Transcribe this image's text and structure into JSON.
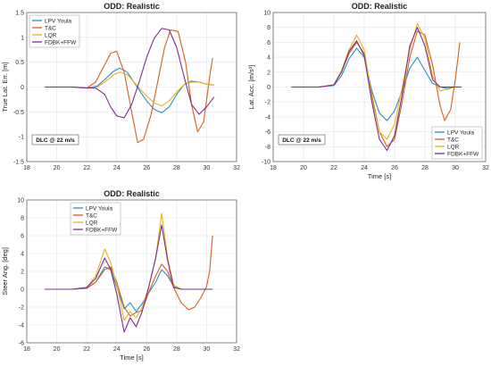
{
  "chart_data": [
    {
      "type": "line",
      "title": "ODD: Realistic",
      "xlabel": "",
      "ylabel": "True Lat. Err. [m]",
      "xlim": [
        18,
        32
      ],
      "ylim": [
        -1.5,
        1.5
      ],
      "xticks": [
        "18",
        "20",
        "22",
        "24",
        "26",
        "28",
        "30",
        "32"
      ],
      "yticks": [
        "-1.5",
        "-1",
        "-0.5",
        "0",
        "0.5",
        "1",
        "1.5"
      ],
      "grid": true,
      "legend": "top-left",
      "annotation": "DLC @ 22 m/s",
      "series": [
        {
          "name": "LPV Youla",
          "color": "#2a8fc0",
          "x": [
            19.2,
            20,
            21,
            22,
            22.7,
            23.3,
            23.8,
            24.2,
            24.7,
            25.1,
            25.5,
            26,
            26.5,
            27,
            27.5,
            28,
            28.5,
            29,
            29.5,
            30,
            30.5
          ],
          "y": [
            0,
            0,
            0,
            -0.02,
            0.02,
            0.18,
            0.32,
            0.38,
            0.3,
            0.12,
            -0.06,
            -0.28,
            -0.45,
            -0.52,
            -0.4,
            -0.15,
            0.05,
            0.12,
            0.1,
            0.06,
            0.04
          ]
        },
        {
          "name": "T&C",
          "color": "#d35f1e",
          "x": [
            19.2,
            20,
            21,
            22,
            22.6,
            23.2,
            23.6,
            24,
            24.5,
            25,
            25.4,
            25.8,
            26.3,
            26.8,
            27.2,
            27.6,
            28.1,
            28.6,
            29,
            29.4,
            29.8,
            30.2,
            30.4
          ],
          "y": [
            0,
            0,
            0,
            -0.02,
            0.1,
            0.45,
            0.68,
            0.72,
            0.3,
            -0.5,
            -1.12,
            -1.05,
            -0.55,
            0.2,
            0.8,
            1.15,
            1.12,
            0.5,
            -0.35,
            -0.9,
            -0.7,
            0.2,
            0.58
          ]
        },
        {
          "name": "LQR",
          "color": "#e6b21e",
          "x": [
            19.2,
            20,
            21,
            22,
            22.7,
            23.3,
            23.8,
            24.2,
            24.7,
            25.1,
            25.5,
            26,
            26.5,
            27,
            27.5,
            28,
            28.5,
            29,
            29.5,
            30,
            30.5
          ],
          "y": [
            0,
            0,
            0,
            -0.02,
            0,
            0.12,
            0.25,
            0.3,
            0.25,
            0.12,
            -0.02,
            -0.18,
            -0.32,
            -0.38,
            -0.28,
            -0.1,
            0.05,
            0.1,
            0.1,
            0.06,
            0.04
          ]
        },
        {
          "name": "FDBK+FFW",
          "color": "#7b2e8e",
          "x": [
            19.2,
            20,
            21,
            22,
            22.6,
            23.2,
            23.6,
            24,
            24.5,
            25,
            25.5,
            26,
            26.5,
            27,
            27.5,
            28,
            28.5,
            29,
            29.5,
            30,
            30.5
          ],
          "y": [
            0,
            0,
            0,
            -0.02,
            -0.02,
            -0.15,
            -0.4,
            -0.58,
            -0.62,
            -0.35,
            0.1,
            0.6,
            0.98,
            1.18,
            1.15,
            0.8,
            0.2,
            -0.35,
            -0.55,
            -0.4,
            -0.2
          ]
        }
      ]
    },
    {
      "type": "line",
      "title": "ODD: Realistic",
      "xlabel": "Time [s]",
      "ylabel": "Lat. Acc. [m/s²]",
      "xlim": [
        18,
        32
      ],
      "ylim": [
        -10,
        10
      ],
      "xticks": [
        "18",
        "20",
        "22",
        "24",
        "26",
        "28",
        "30",
        "32"
      ],
      "yticks": [
        "-10",
        "-8",
        "-6",
        "-4",
        "-2",
        "0",
        "2",
        "4",
        "6",
        "8",
        "10"
      ],
      "grid": true,
      "legend": "bottom-right",
      "annotation": "DLC @ 22 m/s",
      "series": [
        {
          "name": "LPV Youla",
          "color": "#2a8fc0",
          "x": [
            19.2,
            20,
            21,
            22,
            22.5,
            23,
            23.5,
            24,
            24.5,
            25,
            25.5,
            26,
            26.5,
            27,
            27.5,
            28,
            28.5,
            29,
            29.5,
            30,
            30.4
          ],
          "y": [
            0,
            0,
            0,
            0.2,
            1.5,
            3.8,
            5.2,
            4,
            -0.5,
            -3.5,
            -4.5,
            -3.2,
            -0.5,
            2.5,
            4,
            2.2,
            0.5,
            0,
            -0.2,
            0,
            0
          ]
        },
        {
          "name": "T&C",
          "color": "#d35f1e",
          "x": [
            19.2,
            20,
            21,
            22,
            22.5,
            23,
            23.5,
            24,
            24.5,
            25,
            25.5,
            26,
            26.5,
            27,
            27.5,
            28,
            28.5,
            29,
            29.3,
            29.7,
            30,
            30.3
          ],
          "y": [
            0,
            0,
            0,
            0.3,
            2,
            4.5,
            6,
            4.5,
            -1,
            -6,
            -8,
            -7,
            -2,
            4,
            7.5,
            7,
            3,
            -2.5,
            -4.5,
            -3,
            1,
            6
          ]
        },
        {
          "name": "LQR",
          "color": "#e6b21e",
          "x": [
            19.2,
            20,
            21,
            22,
            22.5,
            23,
            23.5,
            24,
            24.5,
            25,
            25.5,
            26,
            26.5,
            27,
            27.5,
            28,
            28.5,
            29,
            29.5,
            30,
            30.4
          ],
          "y": [
            0,
            0,
            0,
            0.3,
            2.2,
            5,
            7,
            5,
            -1.5,
            -6,
            -7,
            -5,
            0,
            5,
            8.5,
            6.5,
            1.5,
            -0.5,
            -0.3,
            0,
            0
          ]
        },
        {
          "name": "FDBK+FFW",
          "color": "#7b2e8e",
          "x": [
            19.2,
            20,
            21,
            22,
            22.5,
            23,
            23.5,
            24,
            24.5,
            25,
            25.5,
            26,
            26.5,
            27,
            27.5,
            28,
            28.5,
            29,
            29.5,
            30,
            30.4
          ],
          "y": [
            0,
            0,
            0,
            0.3,
            2,
            4.8,
            6.2,
            4.2,
            -2,
            -7,
            -8.5,
            -6.5,
            -1,
            5.5,
            8,
            5.5,
            1,
            0,
            0,
            0,
            0
          ]
        }
      ]
    },
    {
      "type": "line",
      "title": "ODD: Realistic",
      "xlabel": "Time [s]",
      "ylabel": "Steer Ang. [deg]",
      "xlim": [
        18,
        32
      ],
      "ylim": [
        -6,
        10
      ],
      "xticks": [
        "18",
        "20",
        "22",
        "24",
        "26",
        "28",
        "30",
        "32"
      ],
      "yticks": [
        "-6",
        "-4",
        "-2",
        "0",
        "2",
        "4",
        "6",
        "8",
        "10"
      ],
      "grid": true,
      "legend": "top-right",
      "series": [
        {
          "name": "LPV Youla",
          "color": "#2a8fc0",
          "x": [
            19.2,
            20,
            21,
            22,
            22.6,
            23.2,
            23.6,
            24,
            24.5,
            24.9,
            25.3,
            25.7,
            26.1,
            26.6,
            27,
            27.4,
            27.8,
            28.3,
            28.8,
            29.4,
            30,
            30.4
          ],
          "y": [
            0,
            0,
            0,
            0.1,
            0.8,
            2.5,
            2.2,
            0.3,
            -2.2,
            -1.5,
            -2.5,
            -1.6,
            -0.5,
            0.8,
            2.2,
            1.5,
            0.3,
            0,
            0,
            0,
            0,
            0
          ]
        },
        {
          "name": "T&C",
          "color": "#d35f1e",
          "x": [
            19.2,
            20,
            21,
            22,
            22.6,
            23.2,
            23.6,
            24,
            24.5,
            24.9,
            25.3,
            25.7,
            26.1,
            26.6,
            27,
            27.4,
            27.8,
            28.3,
            28.8,
            29.2,
            29.6,
            30,
            30.2,
            30.4
          ],
          "y": [
            0,
            0,
            0,
            0.1,
            0.8,
            2.2,
            2.5,
            0.8,
            -2,
            -3,
            -2.6,
            -2.4,
            -0.5,
            1.5,
            2.8,
            2,
            0.2,
            -1.5,
            -2.3,
            -2,
            -1,
            0.3,
            2,
            6
          ]
        },
        {
          "name": "LQR",
          "color": "#e6b21e",
          "x": [
            19.2,
            20,
            21,
            22,
            22.6,
            23.2,
            23.6,
            24,
            24.5,
            24.9,
            25.3,
            25.7,
            26.1,
            26.6,
            27,
            27.4,
            27.8,
            28.3,
            28.8,
            29.4,
            30,
            30.4
          ],
          "y": [
            0,
            0,
            0,
            0.2,
            1.5,
            4.5,
            3,
            0.5,
            -3.5,
            -2.5,
            -3.2,
            -2,
            0,
            3.5,
            8.5,
            3.5,
            0.5,
            0,
            0,
            0,
            0,
            0
          ]
        },
        {
          "name": "FDBK+FFW",
          "color": "#7b2e8e",
          "x": [
            19.2,
            20,
            21,
            22,
            22.6,
            23.2,
            23.6,
            24,
            24.5,
            24.9,
            25.3,
            25.7,
            26.1,
            26.6,
            27,
            27.4,
            27.8,
            28.3,
            28.8,
            29.4,
            30,
            30.4
          ],
          "y": [
            0,
            0,
            0,
            0.2,
            1.2,
            3.5,
            2.2,
            -0.5,
            -4.8,
            -3.2,
            -4.2,
            -2.5,
            0,
            3.5,
            7.2,
            3.2,
            0.2,
            0,
            0,
            0,
            0,
            0
          ]
        }
      ]
    }
  ]
}
